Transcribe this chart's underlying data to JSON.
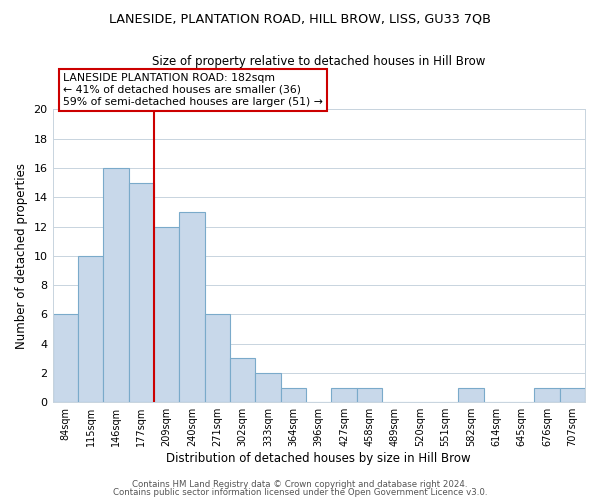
{
  "title": "LANESIDE, PLANTATION ROAD, HILL BROW, LISS, GU33 7QB",
  "subtitle": "Size of property relative to detached houses in Hill Brow",
  "xlabel": "Distribution of detached houses by size in Hill Brow",
  "ylabel": "Number of detached properties",
  "bar_color": "#c8d8ea",
  "bar_edgecolor": "#7aaaca",
  "bin_labels": [
    "84sqm",
    "115sqm",
    "146sqm",
    "177sqm",
    "209sqm",
    "240sqm",
    "271sqm",
    "302sqm",
    "333sqm",
    "364sqm",
    "396sqm",
    "427sqm",
    "458sqm",
    "489sqm",
    "520sqm",
    "551sqm",
    "582sqm",
    "614sqm",
    "645sqm",
    "676sqm",
    "707sqm"
  ],
  "bar_heights": [
    6,
    10,
    16,
    15,
    12,
    13,
    6,
    3,
    2,
    1,
    0,
    1,
    1,
    0,
    0,
    0,
    1,
    0,
    0,
    1,
    1
  ],
  "vline_x": 3.5,
  "vline_color": "#cc0000",
  "annotation_line1": "LANESIDE PLANTATION ROAD: 182sqm",
  "annotation_line2": "← 41% of detached houses are smaller (36)",
  "annotation_line3": "59% of semi-detached houses are larger (51) →",
  "annotation_box_edgecolor": "#cc0000",
  "annotation_box_facecolor": "#ffffff",
  "ylim": [
    0,
    20
  ],
  "yticks": [
    0,
    2,
    4,
    6,
    8,
    10,
    12,
    14,
    16,
    18,
    20
  ],
  "footer_line1": "Contains HM Land Registry data © Crown copyright and database right 2024.",
  "footer_line2": "Contains public sector information licensed under the Open Government Licence v3.0.",
  "background_color": "#ffffff",
  "grid_color": "#c8d4de"
}
